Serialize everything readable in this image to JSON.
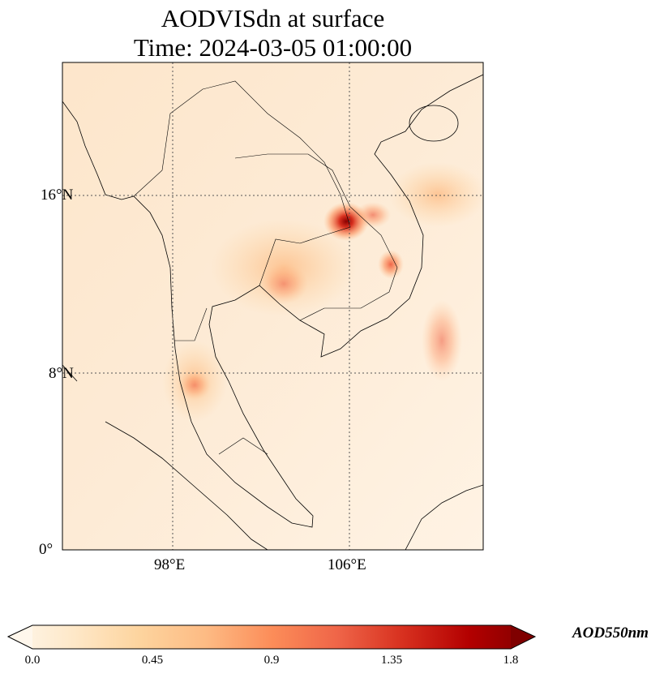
{
  "title": {
    "line1": "AODVISdn at surface",
    "line2": "Time: 2024-03-05 01:00:00"
  },
  "map": {
    "lat_labels": [
      "16°N",
      "8°N",
      "0°"
    ],
    "lon_labels": [
      "98°E",
      "106°E"
    ],
    "extent": {
      "lon": [
        93,
        112
      ],
      "lat": [
        0,
        22
      ]
    }
  },
  "colorbar": {
    "label": "AOD550nm",
    "ticks": [
      "0.0",
      "0.45",
      "0.9",
      "1.35",
      "1.8"
    ],
    "range": [
      0,
      1.8
    ],
    "colormap": [
      "#fff7ec",
      "#fee8c8",
      "#fdd49e",
      "#fdbb84",
      "#fc8d59",
      "#ef6548",
      "#d7301f",
      "#b30000",
      "#7f0000"
    ]
  }
}
